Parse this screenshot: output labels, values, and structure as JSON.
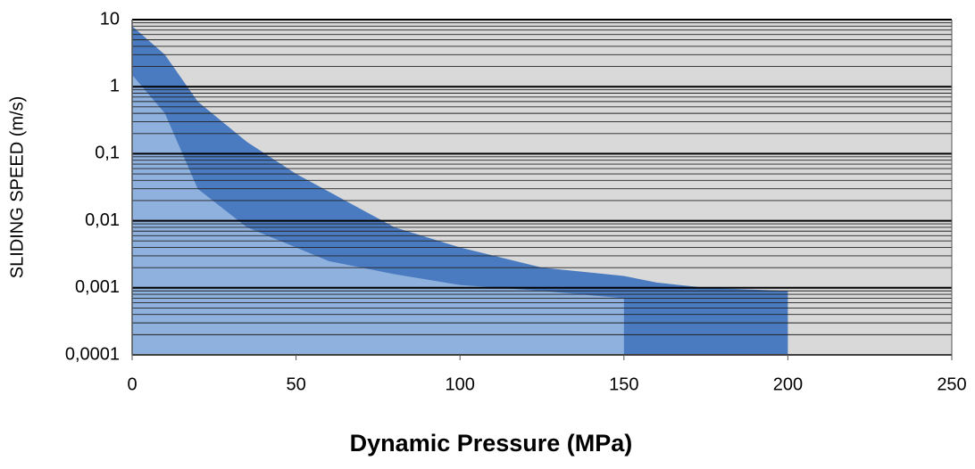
{
  "chart_data": {
    "type": "area",
    "xlabel": "Dynamic Pressure (MPa)",
    "ylabel": "SLIDING SPEED (m/s)",
    "log_y": true,
    "grid": true,
    "minor_grid": true,
    "background": "#d9d9d9",
    "xlim": [
      0,
      250
    ],
    "xticks": [
      0,
      50,
      100,
      150,
      200,
      250
    ],
    "ylim": [
      0.0001,
      10
    ],
    "yticks": [
      10,
      1,
      {
        "value": 0.1,
        "label": "0,1"
      },
      {
        "value": 0.01,
        "label": "0,01"
      },
      {
        "value": 0.001,
        "label": "0,001"
      },
      {
        "value": 0.0001,
        "label": "0,0001"
      }
    ],
    "series": [
      {
        "color": "#4a7bc0",
        "x": [
          0,
          10,
          20,
          35,
          50,
          65,
          80,
          100,
          125,
          150,
          160,
          175,
          200
        ],
        "values": [
          8,
          3,
          0.6,
          0.15,
          0.05,
          0.02,
          0.008,
          0.004,
          0.002,
          0.0015,
          0.0012,
          0.001,
          0.0009
        ]
      },
      {
        "color": "#8fb1de",
        "x": [
          0,
          10,
          20,
          35,
          50,
          60,
          80,
          100,
          125,
          150
        ],
        "values": [
          1.5,
          0.4,
          0.03,
          0.008,
          0.004,
          0.0025,
          0.0016,
          0.0011,
          0.0009,
          0.0007
        ]
      }
    ]
  }
}
